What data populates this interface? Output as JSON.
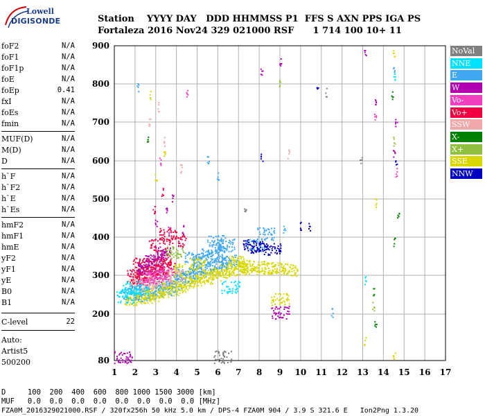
{
  "logo": {
    "line1": "Lowell",
    "line2": "DIGISONDE"
  },
  "header": {
    "row1": "Station    YYYY DAY   DDD HHMMSS P1  FFS S AXN PPS IGA PS",
    "row2": "Fortaleza 2016 Nov24 329 021000 RSF      1 714 100 10+ 11"
  },
  "params": [
    {
      "name": "foF2",
      "value": "N/A"
    },
    {
      "name": "foF1",
      "value": "N/A"
    },
    {
      "name": "foF1p",
      "value": "N/A"
    },
    {
      "name": "foE",
      "value": "N/A"
    },
    {
      "name": "foEp",
      "value": "0.41"
    },
    {
      "name": "fxI",
      "value": "N/A"
    },
    {
      "name": "foEs",
      "value": "N/A"
    },
    {
      "name": "fmin",
      "value": "N/A"
    },
    {
      "name": "MUF(D)",
      "value": "N/A"
    },
    {
      "name": "M(D)",
      "value": "N/A"
    },
    {
      "name": "D",
      "value": "N/A"
    },
    {
      "name": "h`F",
      "value": "N/A"
    },
    {
      "name": "h`F2",
      "value": "N/A"
    },
    {
      "name": "h`E",
      "value": "N/A"
    },
    {
      "name": "h`Es",
      "value": "N/A"
    },
    {
      "name": "hmF2",
      "value": "N/A"
    },
    {
      "name": "hmF1",
      "value": "N/A"
    },
    {
      "name": "hmE",
      "value": "N/A"
    },
    {
      "name": "yF2",
      "value": "N/A"
    },
    {
      "name": "yF1",
      "value": "N/A"
    },
    {
      "name": "yE",
      "value": "N/A"
    },
    {
      "name": "B0",
      "value": "N/A"
    },
    {
      "name": "B1",
      "value": "N/A"
    },
    {
      "name": "C-level",
      "value": "22"
    }
  ],
  "auto": {
    "line1": "Auto:",
    "line2": "Artist5",
    "line3": "500200"
  },
  "legend": [
    {
      "label": "NoVal",
      "color": "#808080"
    },
    {
      "label": "NNE",
      "color": "#00e0ff"
    },
    {
      "label": "E",
      "color": "#40a8f0"
    },
    {
      "label": "W",
      "color": "#b000b0"
    },
    {
      "label": "Vo-",
      "color": "#f040c0"
    },
    {
      "label": "Vo+",
      "color": "#f00040"
    },
    {
      "label": "SSW",
      "color": "#f0a8a8"
    },
    {
      "label": "X-",
      "color": "#008000"
    },
    {
      "label": "X+",
      "color": "#90c040"
    },
    {
      "label": "SSE",
      "color": "#d8d800"
    },
    {
      "label": "NNW",
      "color": "#0000c0"
    }
  ],
  "footer": {
    "d_row": "D     100  200  400  600  800 1000 1500 3000 [km]",
    "muf_row": "MUF   0.0  0.0  0.0  0.0  0.0  0.0  0.0  0.0 [MHz]",
    "info": "FZA0M_2016329021000.RSF / 320fx256h 50 kHz 5.0 km / DPS-4 FZA0M 904 / 3.9 S 321.6 E   Ion2Png 1.3.20"
  },
  "chart_data": {
    "type": "scatter",
    "xlabel": "",
    "ylabel": "",
    "xlim": [
      1,
      17
    ],
    "ylim": [
      80,
      900
    ],
    "x_ticks": [
      1,
      2,
      3,
      4,
      5,
      6,
      7,
      8,
      9,
      10,
      11,
      12,
      13,
      14,
      15,
      16,
      17
    ],
    "y_ticks": [
      80,
      200,
      300,
      400,
      500,
      600,
      700,
      800,
      900
    ],
    "grid": true,
    "legend_position": "right",
    "series": [
      {
        "name": "E",
        "color": "#40a8f0",
        "points": [
          [
            1.8,
            255
          ],
          [
            2.0,
            252
          ],
          [
            2.3,
            250
          ],
          [
            2.6,
            255
          ],
          [
            3.0,
            262
          ],
          [
            3.4,
            270
          ],
          [
            3.8,
            280
          ],
          [
            4.2,
            290
          ],
          [
            4.6,
            300
          ],
          [
            5.0,
            310
          ],
          [
            5.4,
            320
          ],
          [
            5.8,
            328
          ],
          [
            6.2,
            332
          ],
          [
            6.6,
            338
          ],
          [
            5.2,
            340
          ],
          [
            5.6,
            355
          ],
          [
            6.0,
            365
          ],
          [
            4.8,
            345
          ],
          [
            5.9,
            390
          ],
          [
            6.4,
            380
          ],
          [
            3.6,
            265
          ],
          [
            4.4,
            305
          ],
          [
            2.1,
            790
          ],
          [
            7.8,
            380
          ],
          [
            8.3,
            410
          ],
          [
            9.2,
            420
          ],
          [
            11.5,
            205
          ],
          [
            14.5,
            840
          ],
          [
            5.5,
            600
          ],
          [
            6.0,
            560
          ]
        ]
      },
      {
        "name": "SSE",
        "color": "#d8d800",
        "points": [
          [
            1.9,
            240
          ],
          [
            2.4,
            245
          ],
          [
            2.8,
            250
          ],
          [
            3.2,
            258
          ],
          [
            3.7,
            265
          ],
          [
            4.1,
            272
          ],
          [
            4.5,
            280
          ],
          [
            4.9,
            288
          ],
          [
            5.3,
            295
          ],
          [
            5.7,
            300
          ],
          [
            6.1,
            305
          ],
          [
            6.5,
            312
          ],
          [
            7.0,
            318
          ],
          [
            7.5,
            320
          ],
          [
            8.0,
            322
          ],
          [
            8.5,
            320
          ],
          [
            9.0,
            318
          ],
          [
            9.4,
            315
          ],
          [
            6.8,
            335
          ],
          [
            7.2,
            330
          ],
          [
            5.0,
            330
          ],
          [
            4.3,
            315
          ],
          [
            3.0,
            560
          ],
          [
            3.4,
            620
          ],
          [
            2.7,
            770
          ],
          [
            14.5,
            880
          ],
          [
            13.1,
            130
          ],
          [
            9.0,
            240
          ],
          [
            14.5,
            90
          ],
          [
            13.6,
            490
          ]
        ]
      },
      {
        "name": "Vo+",
        "color": "#f00040",
        "points": [
          [
            2.0,
            300
          ],
          [
            2.4,
            305
          ],
          [
            2.8,
            295
          ],
          [
            3.2,
            310
          ],
          [
            3.5,
            320
          ],
          [
            2.2,
            285
          ],
          [
            2.6,
            315
          ],
          [
            3.0,
            330
          ],
          [
            3.3,
            340
          ],
          [
            2.3,
            330
          ],
          [
            3.1,
            380
          ],
          [
            3.6,
            410
          ],
          [
            4.0,
            390
          ],
          [
            2.9,
            470
          ],
          [
            3.3,
            520
          ]
        ]
      },
      {
        "name": "W",
        "color": "#b000b0",
        "points": [
          [
            2.5,
            320
          ],
          [
            2.9,
            340
          ],
          [
            3.3,
            360
          ],
          [
            3.0,
            440
          ],
          [
            3.5,
            470
          ],
          [
            3.8,
            500
          ],
          [
            4.3,
            420
          ],
          [
            9.0,
            860
          ],
          [
            13.1,
            880
          ],
          [
            13.6,
            750
          ],
          [
            14.5,
            620
          ],
          [
            14.6,
            700
          ],
          [
            8.1,
            830
          ],
          [
            1.4,
            90
          ],
          [
            9.0,
            205
          ]
        ]
      },
      {
        "name": "SSW",
        "color": "#f0a8a8",
        "points": [
          [
            2.1,
            275
          ],
          [
            2.5,
            280
          ],
          [
            3.0,
            285
          ],
          [
            3.4,
            290
          ],
          [
            3.9,
            300
          ],
          [
            2.7,
            700
          ],
          [
            3.1,
            740
          ],
          [
            3.4,
            650
          ],
          [
            4.2,
            580
          ],
          [
            9.4,
            620
          ]
        ]
      },
      {
        "name": "Vo-",
        "color": "#f040c0",
        "points": [
          [
            2.6,
            290
          ],
          [
            3.0,
            300
          ],
          [
            3.4,
            305
          ],
          [
            3.6,
            420
          ],
          [
            3.2,
            600
          ],
          [
            4.5,
            780
          ],
          [
            13.6,
            720
          ],
          [
            14.6,
            570
          ]
        ]
      },
      {
        "name": "NNE",
        "color": "#00e0ff",
        "points": [
          [
            1.5,
            245
          ],
          [
            1.8,
            270
          ],
          [
            2.2,
            265
          ],
          [
            14.5,
            820
          ],
          [
            13.1,
            290
          ],
          [
            6.6,
            270
          ]
        ]
      },
      {
        "name": "X-",
        "color": "#008000",
        "points": [
          [
            14.4,
            770
          ],
          [
            13.6,
            180
          ],
          [
            14.5,
            390
          ],
          [
            13.5,
            260
          ],
          [
            2.6,
            660
          ],
          [
            14.7,
            460
          ]
        ]
      },
      {
        "name": "X+",
        "color": "#90c040",
        "points": [
          [
            3.9,
            360
          ],
          [
            14.5,
            650
          ],
          [
            13.5,
            220
          ],
          [
            9.0,
            800
          ]
        ]
      },
      {
        "name": "NNW",
        "color": "#0000c0",
        "points": [
          [
            7.6,
            380
          ],
          [
            8.0,
            375
          ],
          [
            8.6,
            370
          ],
          [
            10.0,
            430
          ],
          [
            10.4,
            425
          ],
          [
            10.8,
            800
          ],
          [
            8.1,
            610
          ],
          [
            14.6,
            600
          ]
        ]
      },
      {
        "name": "NoVal",
        "color": "#808080",
        "points": [
          [
            7.3,
            480
          ],
          [
            11.2,
            780
          ],
          [
            12.9,
            600
          ],
          [
            6.2,
            90
          ]
        ]
      }
    ]
  }
}
